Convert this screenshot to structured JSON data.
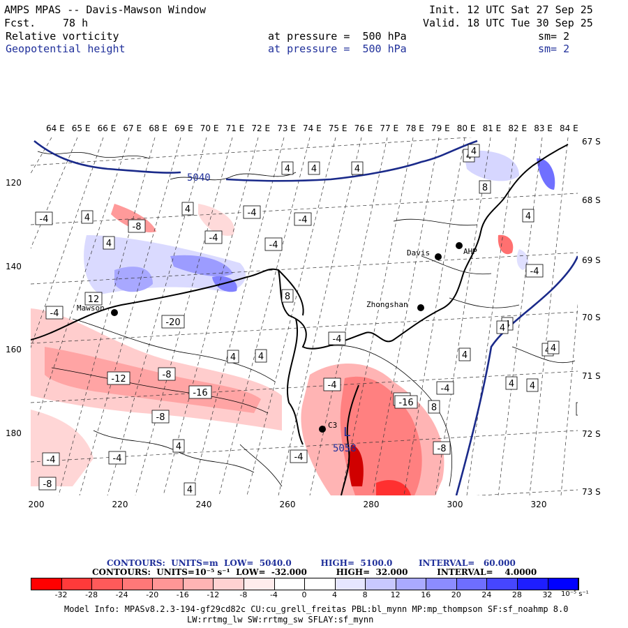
{
  "header": {
    "title": "AMPS MPAS -- Davis-Mawson Window",
    "fcst_label": "Fcst.",
    "fcst_value": "78 h",
    "init": "Init. 12 UTC Sat 27 Sep 25",
    "valid": "Valid. 18 UTC Tue 30 Sep 25",
    "field1": {
      "name": "Relative vorticity",
      "level": "at pressure =  500 hPa",
      "sm": "sm= 2"
    },
    "field2": {
      "name": "Geopotential height",
      "level": "at pressure =  500 hPa",
      "sm": "sm= 2"
    }
  },
  "map": {
    "lon_labels": [
      "64 E",
      "65 E",
      "66 E",
      "67 E",
      "68 E",
      "69 E",
      "70 E",
      "71 E",
      "72 E",
      "73 E",
      "74 E",
      "75 E",
      "76 E",
      "77 E",
      "78 E",
      "79 E",
      "80 E",
      "81 E",
      "82 E",
      "83 E",
      "84 E"
    ],
    "lat_labels": [
      "67 S",
      "68 S",
      "69 S",
      "70 S",
      "71 S",
      "72 S",
      "73 S"
    ],
    "x_axis": [
      "200",
      "220",
      "240",
      "260",
      "280",
      "300",
      "320"
    ],
    "y_axis": [
      "120",
      "140",
      "160",
      "180"
    ],
    "height_labels": [
      "5040",
      "5058"
    ],
    "low_label": "L",
    "stations": [
      "Davis",
      "AHP",
      "Zhongshan",
      "Mawson",
      "C3"
    ],
    "vort_labels": [
      "4",
      "-4",
      "-8",
      "12",
      "-12",
      "8",
      "-16",
      "-20",
      "-4",
      "4",
      "8",
      "-8"
    ]
  },
  "contours": {
    "line1": "CONTOURS:  UNITS=m  LOW=  5040.0          HIGH=  5100.0         INTERVAL=   60.000",
    "line2": "CONTOURS:  UNITS=10⁻⁵ s⁻¹  LOW=  -32.000          HIGH=  32.000          INTERVAL=    4.0000"
  },
  "colorbar": {
    "colors": [
      "#ff0000",
      "#ff3a3a",
      "#ff5a5a",
      "#ff7878",
      "#ff9696",
      "#ffb4b4",
      "#ffd2d2",
      "#ffecec",
      "#ffffff",
      "#ffffff",
      "#e6e6ff",
      "#c8c8ff",
      "#aaaaff",
      "#8c8cff",
      "#6e6eff",
      "#4646ff",
      "#1e1eff",
      "#0000ff"
    ],
    "ticks": [
      "-32",
      "-28",
      "-24",
      "-20",
      "-16",
      "-12",
      "-8",
      "-4",
      "0",
      "4",
      "8",
      "12",
      "16",
      "20",
      "24",
      "28",
      "32"
    ],
    "units": "10⁻⁵ s⁻¹"
  },
  "footer": {
    "line1": "Model Info: MPASv8.2.3-194-gf29cd82c CU:cu_grell_freitas PBL:bl_mynn MP:mp_thompson SF:sf_noahmp 8.0",
    "line2": "LW:rrtmg_lw SW:rrtmg_sw SFLAY:sf_mynn"
  }
}
